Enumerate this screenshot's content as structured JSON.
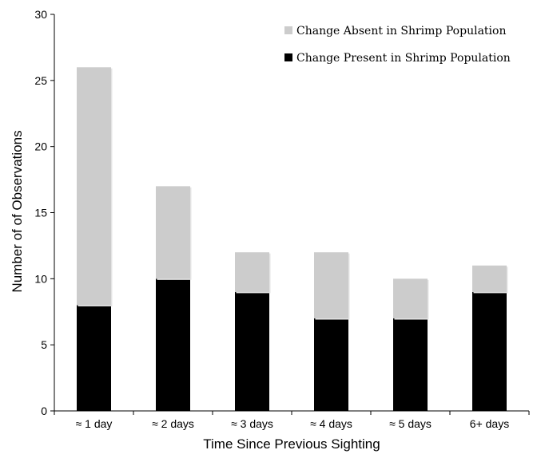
{
  "chart_data": {
    "type": "bar",
    "stacked": true,
    "categories": [
      "≈ 1 day",
      "≈ 2 days",
      "≈ 3 days",
      "≈ 4 days",
      "≈ 5 days",
      "6+ days"
    ],
    "series": [
      {
        "name": "Change Present in Shrimp Population",
        "values": [
          8,
          10,
          9,
          7,
          7,
          9
        ],
        "color": "#000000"
      },
      {
        "name": "Change Absent in Shrimp Population",
        "values": [
          18,
          7,
          3,
          5,
          3,
          2
        ],
        "color": "#cccccc"
      }
    ],
    "totals": [
      26,
      17,
      12,
      12,
      10,
      11
    ],
    "title": "",
    "xlabel": "Time Since Previous Sighting",
    "ylabel": "Number of of Observations",
    "ylim": [
      0,
      30
    ],
    "yticks": [
      0,
      5,
      10,
      15,
      20,
      25,
      30
    ],
    "legend": {
      "position": "top-right",
      "entries": [
        "Change Absent in Shrimp Population",
        "Change Present in Shrimp Population"
      ]
    },
    "grid": false
  }
}
